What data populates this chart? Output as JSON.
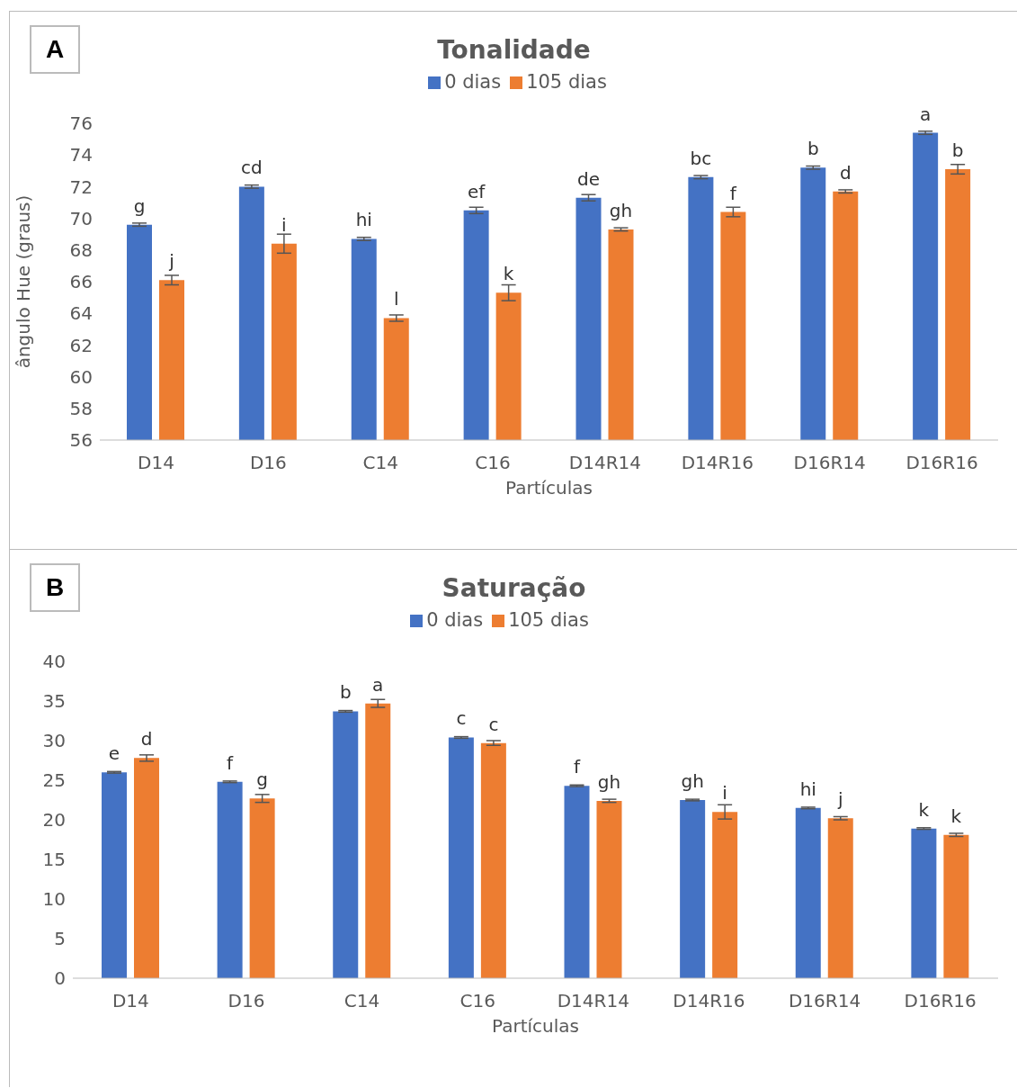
{
  "chart_data": [
    {
      "type": "bar",
      "title": "Tonalidade",
      "xlabel": "Partículas",
      "ylabel": "ângulo Hue (graus)",
      "annotations": [
        "A"
      ],
      "categories": [
        "D14",
        "D16",
        "C14",
        "C16",
        "D14R14",
        "D14R16",
        "D16R14",
        "D16R16"
      ],
      "ylim": [
        56,
        76
      ],
      "yticks": [
        56,
        58,
        60,
        62,
        64,
        66,
        68,
        70,
        72,
        74,
        76
      ],
      "grid": false,
      "legend": "top",
      "series": [
        {
          "name": "0 dias",
          "color": "#4472c4",
          "values": [
            69.6,
            72.0,
            68.7,
            70.5,
            71.3,
            72.6,
            73.2,
            75.4
          ],
          "errors": [
            0.1,
            0.1,
            0.1,
            0.2,
            0.2,
            0.1,
            0.1,
            0.1
          ],
          "value_labels": [
            "g",
            "cd",
            "hi",
            "ef",
            "de",
            "bc",
            "b",
            "a"
          ]
        },
        {
          "name": "105 dias",
          "color": "#ed7d31",
          "values": [
            66.1,
            68.4,
            63.7,
            65.3,
            69.3,
            70.4,
            71.7,
            73.1
          ],
          "errors": [
            0.3,
            0.6,
            0.2,
            0.5,
            0.1,
            0.3,
            0.1,
            0.3
          ],
          "value_labels": [
            "j",
            "i",
            "l",
            "k",
            "gh",
            "f",
            "d",
            "b"
          ]
        }
      ]
    },
    {
      "type": "bar",
      "title": "Saturação",
      "xlabel": "Partículas",
      "annotations": [
        "B"
      ],
      "categories": [
        "D14",
        "D16",
        "C14",
        "C16",
        "D14R14",
        "D14R16",
        "D16R14",
        "D16R16"
      ],
      "ylim": [
        0,
        40
      ],
      "yticks": [
        0,
        5,
        10,
        15,
        20,
        25,
        30,
        35,
        40
      ],
      "grid": false,
      "legend": "top",
      "series": [
        {
          "name": "0 dias",
          "color": "#4472c4",
          "values": [
            26.0,
            24.8,
            33.7,
            30.4,
            24.3,
            22.5,
            21.5,
            18.9
          ],
          "errors": [
            0.1,
            0.1,
            0.1,
            0.1,
            0.1,
            0.1,
            0.1,
            0.1
          ],
          "value_labels": [
            "e",
            "f",
            "b",
            "c",
            "f",
            "gh",
            "hi",
            "k"
          ]
        },
        {
          "name": "105 dias",
          "color": "#ed7d31",
          "values": [
            27.8,
            22.7,
            34.7,
            29.7,
            22.4,
            21.0,
            20.2,
            18.1
          ],
          "errors": [
            0.4,
            0.5,
            0.5,
            0.3,
            0.2,
            0.9,
            0.2,
            0.2
          ],
          "value_labels": [
            "d",
            "g",
            "a",
            "c",
            "gh",
            "i",
            "j",
            "k"
          ]
        }
      ]
    }
  ]
}
